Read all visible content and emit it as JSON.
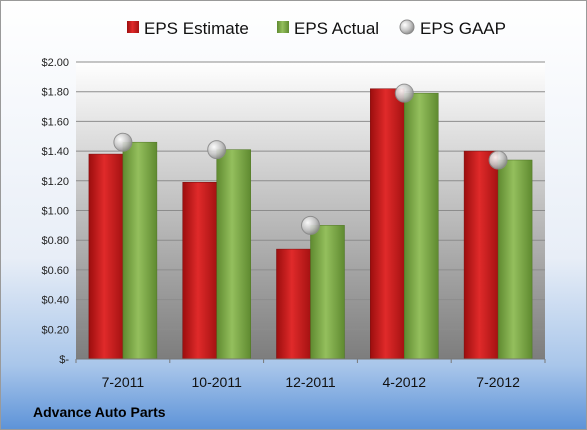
{
  "chart_data": {
    "type": "bar",
    "categories": [
      "7-2011",
      "10-2011",
      "12-2011",
      "4-2012",
      "7-2012"
    ],
    "series": [
      {
        "name": "EPS Estimate",
        "kind": "bar",
        "color": "#c81818",
        "values": [
          1.38,
          1.19,
          0.74,
          1.82,
          1.4
        ]
      },
      {
        "name": "EPS Actual",
        "kind": "bar",
        "color": "#7fa84a",
        "values": [
          1.46,
          1.41,
          0.9,
          1.79,
          1.34
        ]
      },
      {
        "name": "EPS GAAP",
        "kind": "marker",
        "color": "#b8b8b8",
        "values": [
          1.46,
          1.41,
          0.9,
          1.79,
          1.34
        ]
      }
    ],
    "ylim": [
      0,
      2.0
    ],
    "yticks": [
      0,
      0.2,
      0.4,
      0.6,
      0.8,
      1.0,
      1.2,
      1.4,
      1.6,
      1.8,
      2.0
    ],
    "ytick_labels": [
      "$-",
      "$0.20",
      "$0.40",
      "$0.60",
      "$0.80",
      "$1.00",
      "$1.20",
      "$1.40",
      "$1.60",
      "$1.80",
      "$2.00"
    ],
    "grid": true,
    "legend_position": "top",
    "footer": "Advance Auto Parts"
  }
}
